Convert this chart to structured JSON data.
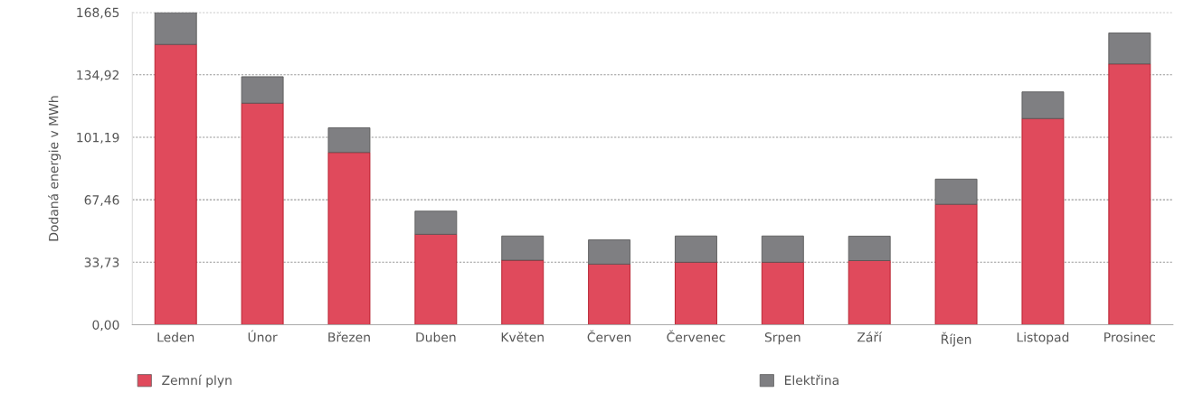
{
  "chart_data": {
    "type": "bar",
    "stacked": true,
    "ylabel": "Dodaná energie v MWh",
    "categories": [
      "Leden",
      "Únor",
      "Březen",
      "Duben",
      "Květen",
      "Červen",
      "Červenec",
      "Srpen",
      "Září",
      "Říjen",
      "Listopad",
      "Prosinec"
    ],
    "series": [
      {
        "name": "Zemní plyn",
        "color": "#e04a5c",
        "values": [
          151.3,
          119.6,
          93.0,
          48.8,
          34.8,
          32.7,
          33.7,
          33.7,
          34.6,
          65.0,
          111.3,
          140.8
        ]
      },
      {
        "name": "Elektřina",
        "color": "#7f7f82",
        "values": [
          17.3,
          14.3,
          13.3,
          12.5,
          13.1,
          13.1,
          14.2,
          14.2,
          13.2,
          13.6,
          14.4,
          16.7
        ]
      }
    ],
    "ylim": [
      0,
      168.65
    ],
    "yticks": [
      {
        "value": 0,
        "label": "0,00"
      },
      {
        "value": 33.73,
        "label": "33,73"
      },
      {
        "value": 67.46,
        "label": "67,46"
      },
      {
        "value": 101.19,
        "label": "101,19"
      },
      {
        "value": 134.92,
        "label": "134,92"
      },
      {
        "value": 168.65,
        "label": "168,65"
      }
    ],
    "grid": "y",
    "legend": "bottom"
  }
}
